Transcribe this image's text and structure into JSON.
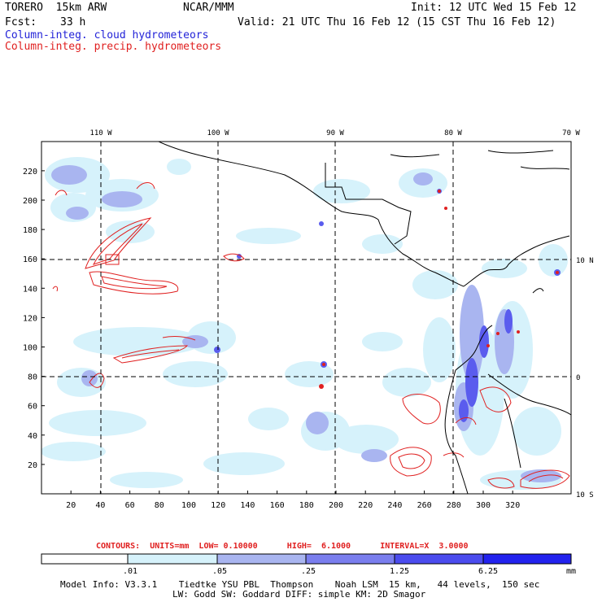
{
  "header": {
    "model": "TORERO  15km ARW",
    "org": "NCAR/MMM",
    "init": "Init: 12 UTC Wed 15 Feb 12",
    "fcst_label": "Fcst:",
    "fcst_value": "33 h",
    "valid": "Valid: 21 UTC Thu 16 Feb 12 (15 CST Thu 16 Feb 12)",
    "field1": "Column-integ. cloud hydrometeors",
    "field2": "Column-integ. precip. hydrometeors"
  },
  "colors": {
    "field1": "#2323d8",
    "field2": "#e02020",
    "fill_levels": [
      "#ffffff",
      "#d6f2fb",
      "#a9b5f0",
      "#7a7eee",
      "#4b4cee",
      "#2222ee"
    ]
  },
  "map": {
    "top_lon_labels": [
      "110 W",
      "100 W",
      "90 W",
      "80 W",
      "70 W"
    ],
    "right_lat_labels": [
      "10 N",
      "0",
      "10 S"
    ],
    "x_grid_labels": [
      "20",
      "40",
      "60",
      "80",
      "100",
      "120",
      "140",
      "160",
      "180",
      "200",
      "220",
      "240",
      "260",
      "280",
      "300",
      "320"
    ],
    "y_grid_labels": [
      "220",
      "200",
      "180",
      "160",
      "140",
      "120",
      "100",
      "80",
      "60",
      "40",
      "20"
    ]
  },
  "legend": {
    "contours_text": "CONTOURS:  UNITS=mm  LOW= 0.10000      HIGH=  6.1000      INTERVAL=X  3.0000",
    "levels": [
      ".01",
      ".05",
      ".25",
      "1.25",
      "6.25"
    ],
    "units": "mm"
  },
  "footer": {
    "line1": "Model Info: V3.3.1    Tiedtke YSU PBL  Thompson    Noah LSM  15 km,   44 levels,  150 sec",
    "line2": "LW: Godd SW: Goddard DIFF: simple KM: 2D Smagor"
  }
}
